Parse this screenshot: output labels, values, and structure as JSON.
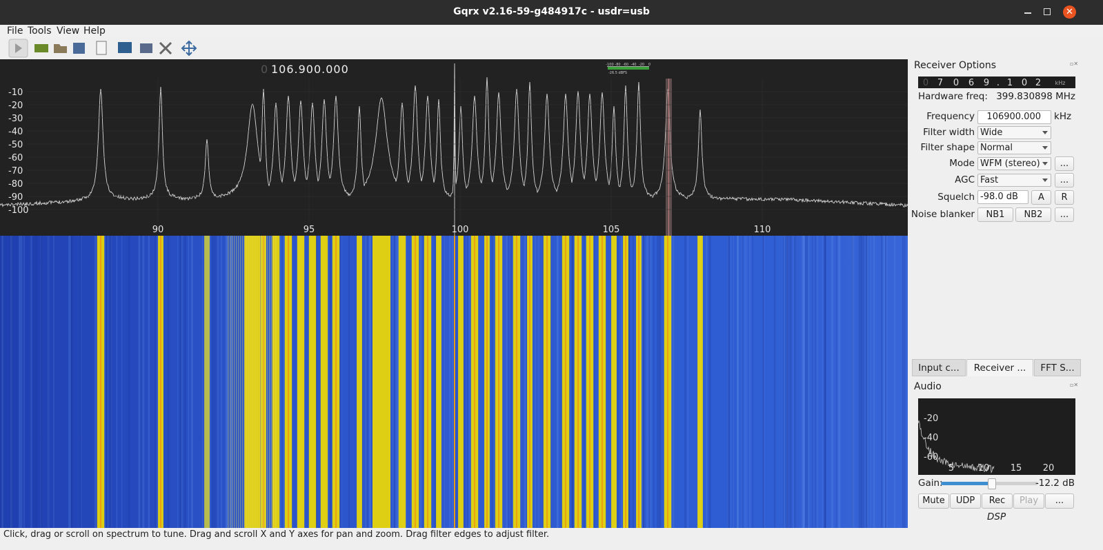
{
  "window": {
    "title": "Gqrx v2.16-59-g484917c - usdr=usb"
  },
  "menu": [
    "File",
    "Tools",
    "View",
    "Help"
  ],
  "spectrum": {
    "frequency": {
      "leading": "0",
      "value": "106.900.000"
    },
    "meter": {
      "scale": [
        -100,
        -80,
        -60,
        -40,
        -20,
        0
      ],
      "level": "-26.5 dBFS"
    },
    "y_ticks": [
      -10,
      -20,
      -30,
      -40,
      -50,
      -60,
      -70,
      -80,
      -90,
      -100
    ],
    "x_ticks": [
      90,
      95,
      100,
      105,
      110
    ]
  },
  "receiver_options": {
    "title": "Receiver Options",
    "offset_display": {
      "digits": [
        "0",
        "7",
        "0",
        "6",
        "9",
        ".",
        "1",
        "0",
        "2"
      ],
      "unit": "kHz"
    },
    "hardware_freq": {
      "label": "Hardware freq:",
      "value": "399.830898 MHz"
    },
    "frequency": {
      "label": "Frequency",
      "value": "106900.000",
      "unit": "kHz"
    },
    "filter_width": {
      "label": "Filter width",
      "value": "Wide"
    },
    "filter_shape": {
      "label": "Filter shape",
      "value": "Normal"
    },
    "mode": {
      "label": "Mode",
      "value": "WFM (stereo)",
      "button": "..."
    },
    "agc": {
      "label": "AGC",
      "value": "Fast",
      "button": "..."
    },
    "squelch": {
      "label": "Squelch",
      "value": "-98.0 dB",
      "buttons": [
        "A",
        "R"
      ]
    },
    "noise_blanker": {
      "label": "Noise blanker",
      "buttons": [
        "NB1",
        "NB2",
        "..."
      ]
    }
  },
  "tabs": [
    "Input c...",
    "Receiver ...",
    "FFT S..."
  ],
  "audio": {
    "title": "Audio",
    "y_ticks": [
      -20,
      -40,
      -60
    ],
    "x_ticks": [
      5,
      10,
      15,
      20
    ],
    "gain": {
      "label": "Gain:",
      "value": "-12.2 dB"
    },
    "buttons": [
      "Mute",
      "UDP",
      "Rec",
      "Play",
      "..."
    ],
    "footer": "DSP"
  },
  "status": "Click, drag or scroll on spectrum to tune. Drag and scroll X and Y axes for pan and zoom. Drag filter edges to adjust filter."
}
